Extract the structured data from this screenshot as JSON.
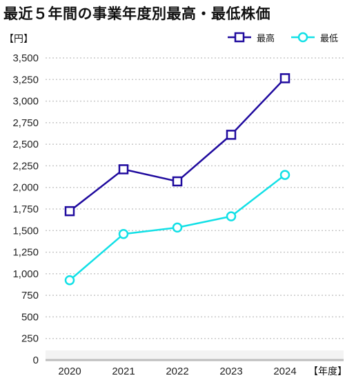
{
  "title": "最近５年間の事業年度別最高・最低株価",
  "chart_data": {
    "type": "line",
    "ylabel": "【円】",
    "xlabel": "【年度】",
    "categories": [
      "2020",
      "2021",
      "2022",
      "2023",
      "2024"
    ],
    "ylim": [
      0,
      3500
    ],
    "yticks": [
      0,
      250,
      500,
      750,
      1000,
      1250,
      1500,
      1750,
      2000,
      2250,
      2500,
      2750,
      3000,
      3250,
      3500
    ],
    "ytick_labels": [
      "0",
      "250",
      "500",
      "750",
      "1,000",
      "1,250",
      "1,500",
      "1,750",
      "2,000",
      "2,250",
      "2,500",
      "2,750",
      "3,000",
      "3,250",
      "3,500"
    ],
    "grid": true,
    "legend_position": "top-right",
    "series": [
      {
        "name": "最高",
        "values": [
          1725,
          2210,
          2070,
          2610,
          3265
        ],
        "color": "#1f0a9e",
        "marker": "square"
      },
      {
        "name": "最低",
        "values": [
          925,
          1460,
          1535,
          1665,
          2145
        ],
        "color": "#12e0e6",
        "marker": "circle"
      }
    ]
  }
}
